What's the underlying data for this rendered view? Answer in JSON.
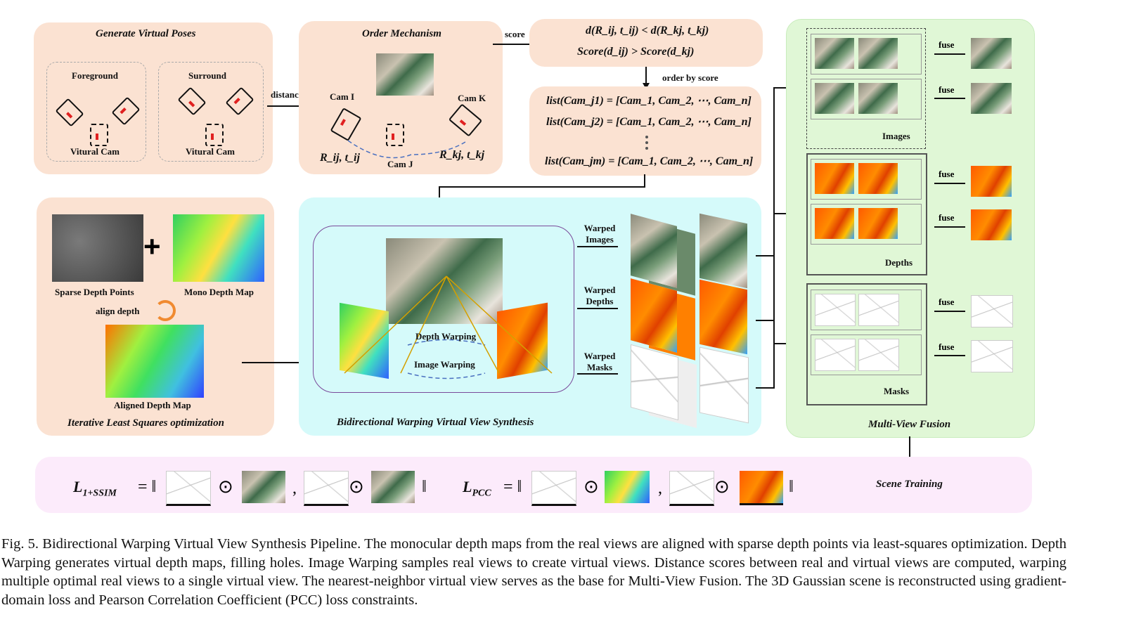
{
  "gen_poses": {
    "title": "Generate Virtual Poses",
    "foreground": "Foreground",
    "surround": "Surround",
    "virtual_cam": "Vitural Cam"
  },
  "arrows": {
    "distance": "distance",
    "score": "score",
    "order_by_score": "order by score"
  },
  "order": {
    "title": "Order Mechanism",
    "cam_i": "Cam I",
    "cam_j": "Cam J",
    "cam_k": "Cam K",
    "r_ij": "R_ij, t_ij",
    "r_kj": "R_kj, t_kj"
  },
  "score_box": {
    "line1": "d(R_ij, t_ij) < d(R_kj, t_kj)",
    "line2": "Score(d_ij) > Score(d_kj)"
  },
  "list_box": {
    "line1": "list(Cam_j1) = [Cam_1, Cam_2, ⋯, Cam_n]",
    "line2": "list(Cam_j2) = [Cam_1, Cam_2, ⋯, Cam_n]",
    "line3": "list(Cam_jm) = [Cam_1, Cam_2, ⋯, Cam_n]"
  },
  "ils": {
    "title": "Iterative Least Squares optimization",
    "sparse": "Sparse Depth Points",
    "mono": "Mono Depth Map",
    "align": "align depth",
    "aligned": "Aligned Depth Map",
    "plus": "+"
  },
  "bw": {
    "title": "Bidirectional Warping Virtual View Synthesis",
    "depth_warping": "Depth Warping",
    "image_warping": "Image Warping",
    "warped_images": "Warped Images",
    "warped_depths": "Warped Depths",
    "warped_masks": "Warped Masks"
  },
  "mvf": {
    "title": "Multi-View Fusion",
    "images": "Images",
    "depths": "Depths",
    "masks": "Masks",
    "fuse": "fuse"
  },
  "loss": {
    "l1": "L",
    "l1_sub": "1+SSIM",
    "lpcc": "L",
    "lpcc_sub": "PCC",
    "eq": "= ‖",
    "odot": "⊙",
    "comma": ",",
    "close": "‖",
    "scene_training": "Scene Training"
  },
  "caption": "Fig. 5.  Bidirectional Warping Virtual View Synthesis Pipeline. The monocular depth maps from the real views are aligned with sparse depth points via least-squares optimization. Depth Warping generates virtual depth maps, filling holes. Image Warping samples real views to create virtual views. Distance scores between real and virtual views are computed, warping multiple optimal real views to a single virtual view. The nearest-neighbor virtual view serves as the base for Multi-View Fusion. The 3D Gaussian scene is reconstructed using gradient-domain loss and Pearson Correlation Coefficient (PCC) loss constraints."
}
